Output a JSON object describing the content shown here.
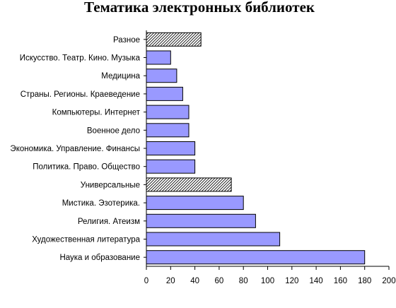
{
  "chart_data": {
    "type": "bar",
    "orientation": "horizontal",
    "title": "Тематика электронных библиотек",
    "xlabel": "",
    "ylabel": "",
    "categories": [
      "Разное",
      "Искусство. Театр. Кино. Музыка",
      "Медицина",
      "Страны. Регионы. Краеведение",
      "Компьютеры. Интернет",
      "Военное дело",
      "Экономика. Управление. Финансы",
      "Политика. Право. Общество",
      "Универсальные",
      "Мистика. Эзотерика.",
      "Религия. Атеизм",
      "Художественная литература",
      "Наука и образование"
    ],
    "values": [
      45,
      20,
      25,
      30,
      35,
      35,
      40,
      40,
      70,
      80,
      90,
      110,
      180
    ],
    "hatched": [
      true,
      false,
      false,
      false,
      false,
      false,
      false,
      false,
      true,
      false,
      false,
      false,
      false
    ],
    "xlim": [
      0,
      200
    ],
    "xticks": [
      "0",
      "20",
      "40",
      "60",
      "80",
      "100",
      "120",
      "140",
      "160",
      "180",
      "200"
    ],
    "grid": false,
    "legend": "none",
    "colors": {
      "bar_fill": "#9999ff",
      "bar_stroke": "#000000",
      "hatch_line": "#000000",
      "hatch_bg": "#ffffff"
    }
  }
}
